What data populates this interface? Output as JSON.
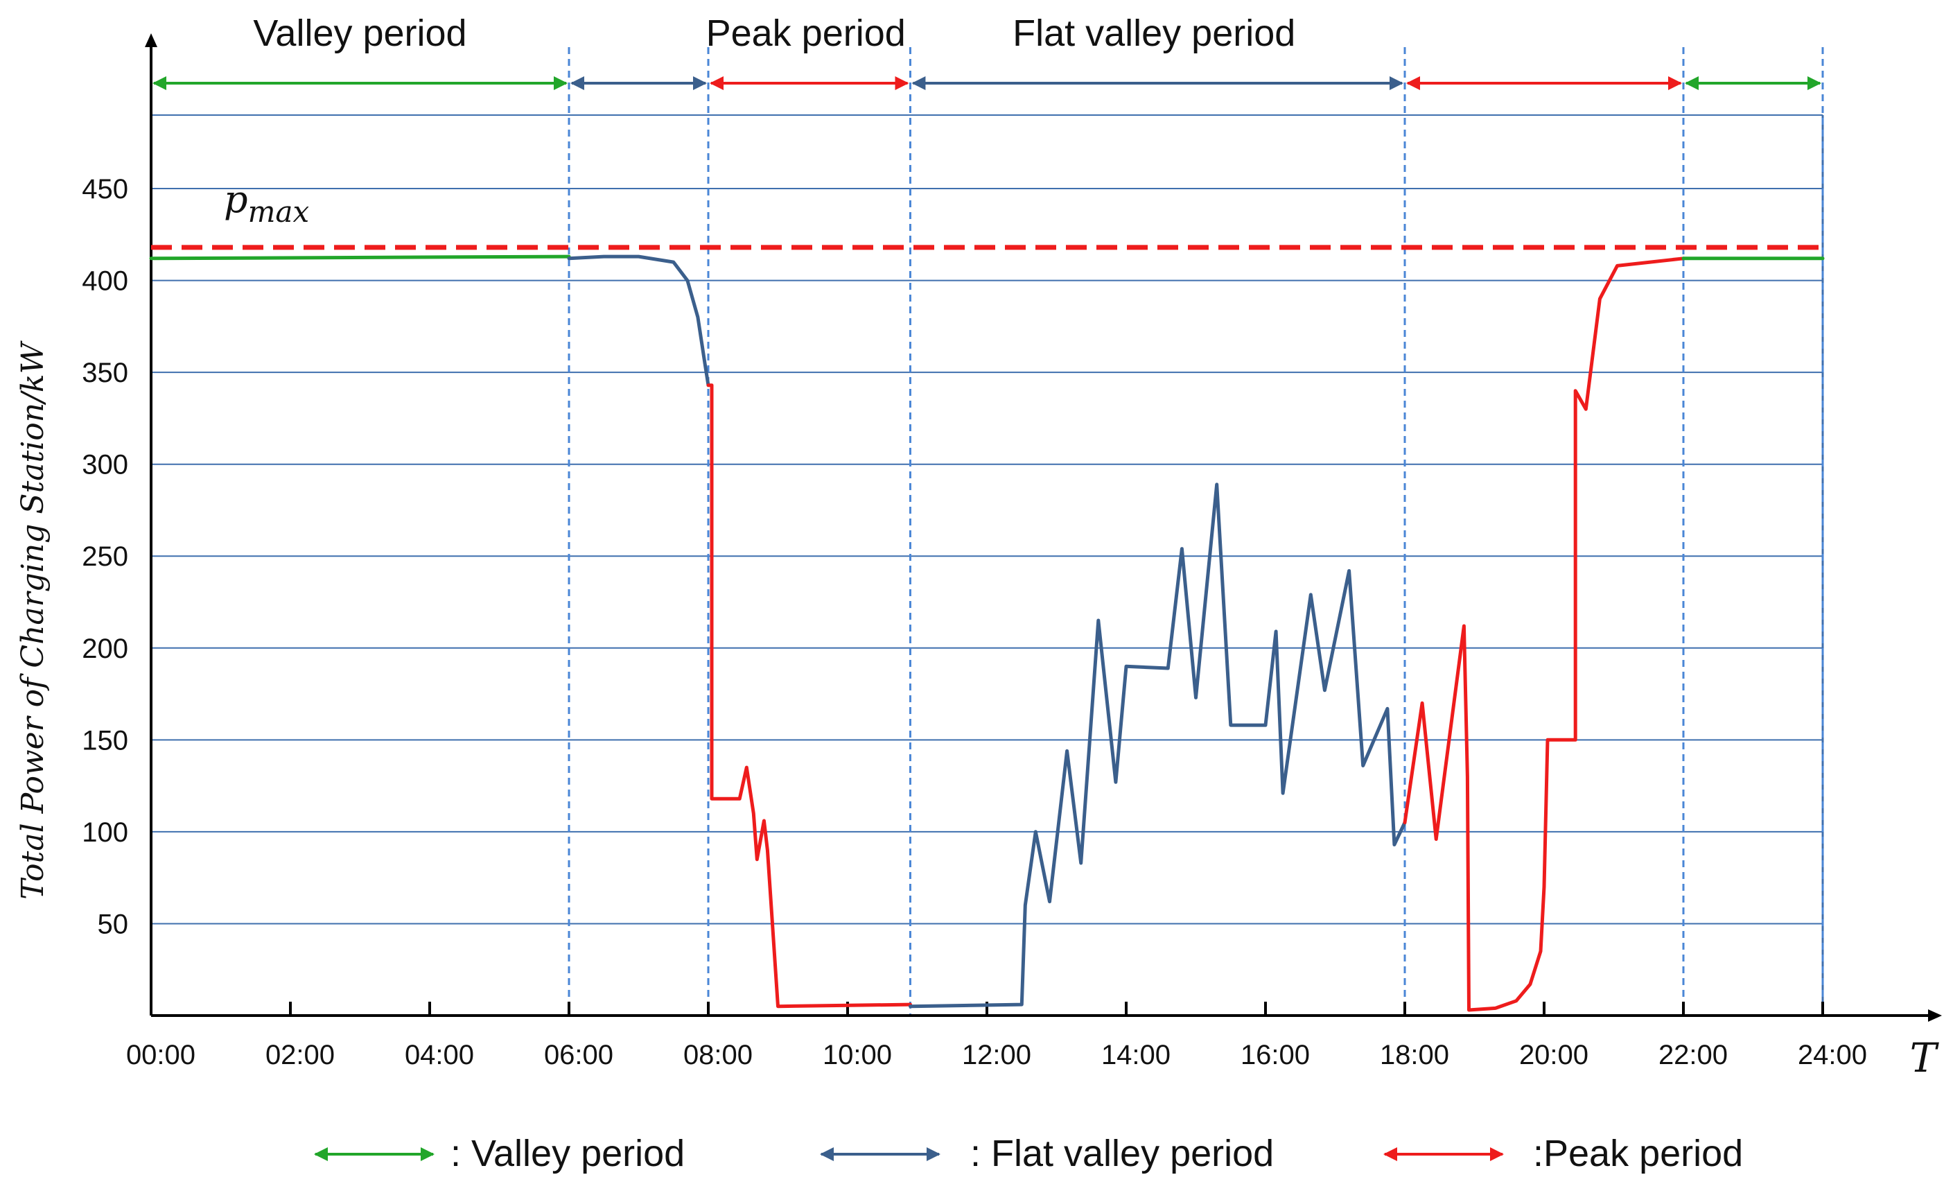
{
  "colors": {
    "valley": "#22a62a",
    "flat": "#3b5f8c",
    "peak": "#ee1c1c",
    "grid": "#3f6fae",
    "divider": "#4a86d6",
    "axis": "#000000"
  },
  "chart_data": {
    "type": "line",
    "ylabel": "Total Power of Charging Station/kW",
    "xlabel": "T",
    "xlim": [
      0,
      24
    ],
    "ylim": [
      0,
      490
    ],
    "grid": "horizontal",
    "y_ticks": [
      50,
      100,
      150,
      200,
      250,
      300,
      350,
      400,
      450
    ],
    "x_ticks": [
      {
        "value": 0,
        "label": "00:00"
      },
      {
        "value": 2,
        "label": "02:00"
      },
      {
        "value": 4,
        "label": "04:00"
      },
      {
        "value": 6,
        "label": "06:00"
      },
      {
        "value": 8,
        "label": "08:00"
      },
      {
        "value": 10,
        "label": "10:00"
      },
      {
        "value": 12,
        "label": "12:00"
      },
      {
        "value": 14,
        "label": "14:00"
      },
      {
        "value": 16,
        "label": "16:00"
      },
      {
        "value": 18,
        "label": "18:00"
      },
      {
        "value": 20,
        "label": "20:00"
      },
      {
        "value": 22,
        "label": "22:00"
      },
      {
        "value": 24,
        "label": "24:00"
      }
    ],
    "pmax": {
      "label": "p",
      "subscript": "max",
      "value": 418
    },
    "dividers": [
      6,
      8,
      10.9,
      18,
      22,
      24
    ],
    "period_labels": [
      {
        "text": "Valley period",
        "x": 3
      },
      {
        "text": "Peak period",
        "x": 9.4
      },
      {
        "text": "Flat valley period",
        "x": 14.4
      }
    ],
    "period_arrows": [
      {
        "period": "valley",
        "from": 0,
        "to": 6
      },
      {
        "period": "flat",
        "from": 6,
        "to": 8
      },
      {
        "period": "peak",
        "from": 8,
        "to": 10.9
      },
      {
        "period": "flat",
        "from": 10.9,
        "to": 18
      },
      {
        "period": "peak",
        "from": 18,
        "to": 22
      },
      {
        "period": "valley",
        "from": 22,
        "to": 24
      }
    ],
    "series": [
      {
        "period": "valley",
        "points": [
          [
            0,
            412
          ],
          [
            6,
            413
          ]
        ]
      },
      {
        "period": "flat",
        "points": [
          [
            6,
            412
          ],
          [
            6.5,
            413
          ],
          [
            7,
            413
          ],
          [
            7.5,
            410
          ],
          [
            7.7,
            400
          ],
          [
            7.85,
            380
          ],
          [
            7.95,
            355
          ],
          [
            8.0,
            343
          ]
        ]
      },
      {
        "period": "peak",
        "points": [
          [
            8.0,
            343
          ],
          [
            8.05,
            343
          ],
          [
            8.05,
            118
          ],
          [
            8.45,
            118
          ],
          [
            8.55,
            135
          ],
          [
            8.65,
            110
          ],
          [
            8.7,
            85
          ],
          [
            8.8,
            106
          ],
          [
            8.85,
            90
          ],
          [
            9.0,
            5
          ],
          [
            10.9,
            6
          ]
        ]
      },
      {
        "period": "flat",
        "points": [
          [
            10.9,
            5
          ],
          [
            12.5,
            6
          ],
          [
            12.55,
            60
          ],
          [
            12.7,
            100
          ],
          [
            12.9,
            62
          ],
          [
            13.15,
            144
          ],
          [
            13.35,
            83
          ],
          [
            13.6,
            215
          ],
          [
            13.85,
            127
          ],
          [
            14.0,
            190
          ],
          [
            14.6,
            189
          ],
          [
            14.8,
            254
          ],
          [
            15.0,
            173
          ],
          [
            15.3,
            289
          ],
          [
            15.5,
            158
          ],
          [
            16.0,
            158
          ],
          [
            16.15,
            209
          ],
          [
            16.25,
            121
          ],
          [
            16.65,
            229
          ],
          [
            16.85,
            177
          ],
          [
            17.2,
            242
          ],
          [
            17.4,
            136
          ],
          [
            17.75,
            167
          ],
          [
            17.85,
            93
          ],
          [
            18.0,
            105
          ]
        ]
      },
      {
        "period": "peak",
        "points": [
          [
            18.0,
            105
          ],
          [
            18.25,
            170
          ],
          [
            18.45,
            96
          ],
          [
            18.85,
            212
          ],
          [
            18.9,
            130
          ],
          [
            18.92,
            3
          ],
          [
            19.3,
            4
          ],
          [
            19.6,
            8
          ],
          [
            19.8,
            17
          ],
          [
            19.95,
            35
          ],
          [
            20.0,
            70
          ],
          [
            20.05,
            150
          ],
          [
            20.45,
            150
          ],
          [
            20.45,
            340
          ],
          [
            20.6,
            330
          ],
          [
            20.8,
            390
          ],
          [
            21.05,
            408
          ],
          [
            22.0,
            412
          ]
        ]
      },
      {
        "period": "valley",
        "points": [
          [
            22.0,
            412
          ],
          [
            24.0,
            412
          ]
        ]
      }
    ],
    "legend": [
      {
        "period": "valley",
        "label": ": Valley period"
      },
      {
        "period": "flat",
        "label": ": Flat valley period"
      },
      {
        "period": "peak",
        "label": ":Peak period"
      }
    ]
  }
}
